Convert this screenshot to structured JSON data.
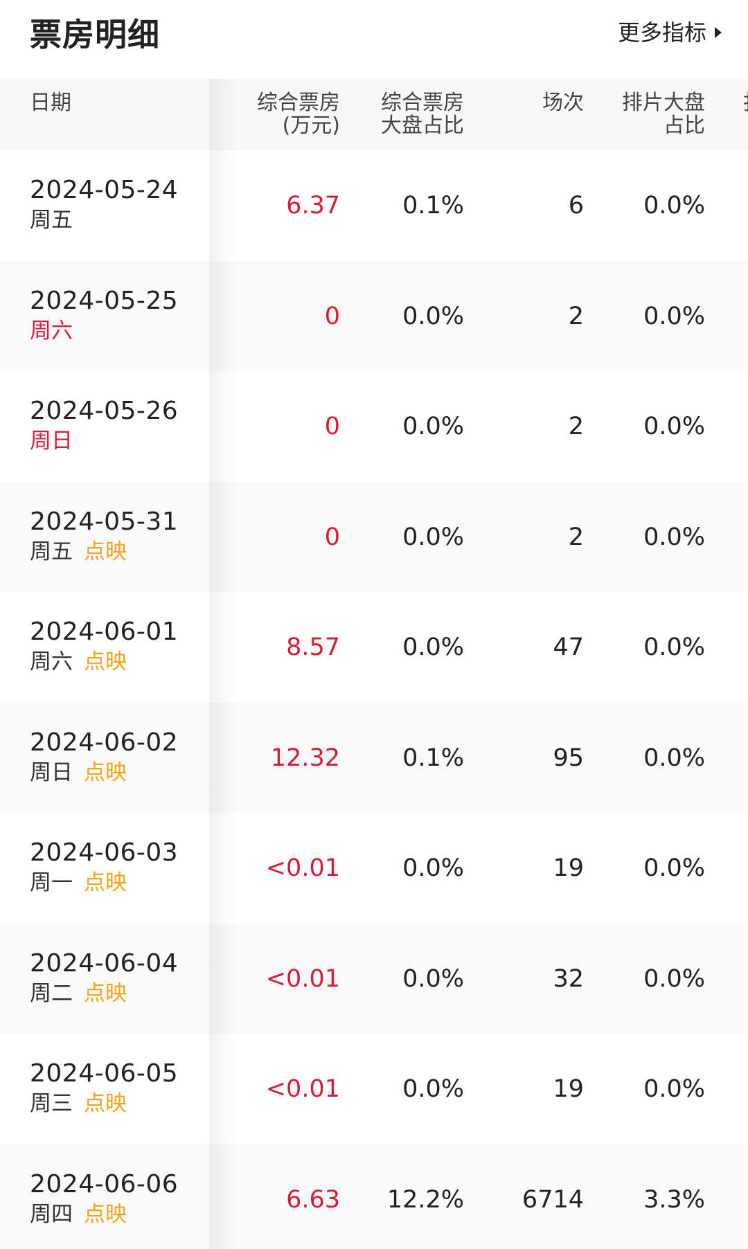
{
  "header": {
    "title": "票房明细",
    "more_label": "更多指标"
  },
  "table": {
    "columns": [
      {
        "lines": [
          "日期"
        ]
      },
      {
        "lines": [
          "综合票房",
          "(万元)"
        ]
      },
      {
        "lines": [
          "综合票房",
          "大盘占比"
        ]
      },
      {
        "lines": [
          "场次"
        ]
      },
      {
        "lines": [
          "排片大盘",
          "占比"
        ]
      },
      {
        "lines": [
          "扌"
        ]
      }
    ],
    "rows": [
      {
        "date": "2024-05-24",
        "weekday": "周五",
        "weekend": false,
        "tag": "",
        "boxoffice": "6.37",
        "share": "0.1%",
        "shows": "6",
        "sched": "0.0%"
      },
      {
        "date": "2024-05-25",
        "weekday": "周六",
        "weekend": true,
        "tag": "",
        "boxoffice": "0",
        "share": "0.0%",
        "shows": "2",
        "sched": "0.0%"
      },
      {
        "date": "2024-05-26",
        "weekday": "周日",
        "weekend": true,
        "tag": "",
        "boxoffice": "0",
        "share": "0.0%",
        "shows": "2",
        "sched": "0.0%"
      },
      {
        "date": "2024-05-31",
        "weekday": "周五",
        "weekend": false,
        "tag": "点映",
        "boxoffice": "0",
        "share": "0.0%",
        "shows": "2",
        "sched": "0.0%"
      },
      {
        "date": "2024-06-01",
        "weekday": "周六",
        "weekend": false,
        "tag": "点映",
        "boxoffice": "8.57",
        "share": "0.0%",
        "shows": "47",
        "sched": "0.0%"
      },
      {
        "date": "2024-06-02",
        "weekday": "周日",
        "weekend": false,
        "tag": "点映",
        "boxoffice": "12.32",
        "share": "0.1%",
        "shows": "95",
        "sched": "0.0%"
      },
      {
        "date": "2024-06-03",
        "weekday": "周一",
        "weekend": false,
        "tag": "点映",
        "boxoffice": "<0.01",
        "share": "0.0%",
        "shows": "19",
        "sched": "0.0%"
      },
      {
        "date": "2024-06-04",
        "weekday": "周二",
        "weekend": false,
        "tag": "点映",
        "boxoffice": "<0.01",
        "share": "0.0%",
        "shows": "32",
        "sched": "0.0%"
      },
      {
        "date": "2024-06-05",
        "weekday": "周三",
        "weekend": false,
        "tag": "点映",
        "boxoffice": "<0.01",
        "share": "0.0%",
        "shows": "19",
        "sched": "0.0%"
      },
      {
        "date": "2024-06-06",
        "weekday": "周四",
        "weekend": false,
        "tag": "点映",
        "boxoffice": "6.63",
        "share": "12.2%",
        "shows": "6714",
        "sched": "3.3%"
      }
    ]
  },
  "colors": {
    "boxoffice": "#d91b32",
    "weekend": "#e0193a",
    "preview_tag": "#f2a516",
    "header_bg": "#f7f7f7"
  }
}
